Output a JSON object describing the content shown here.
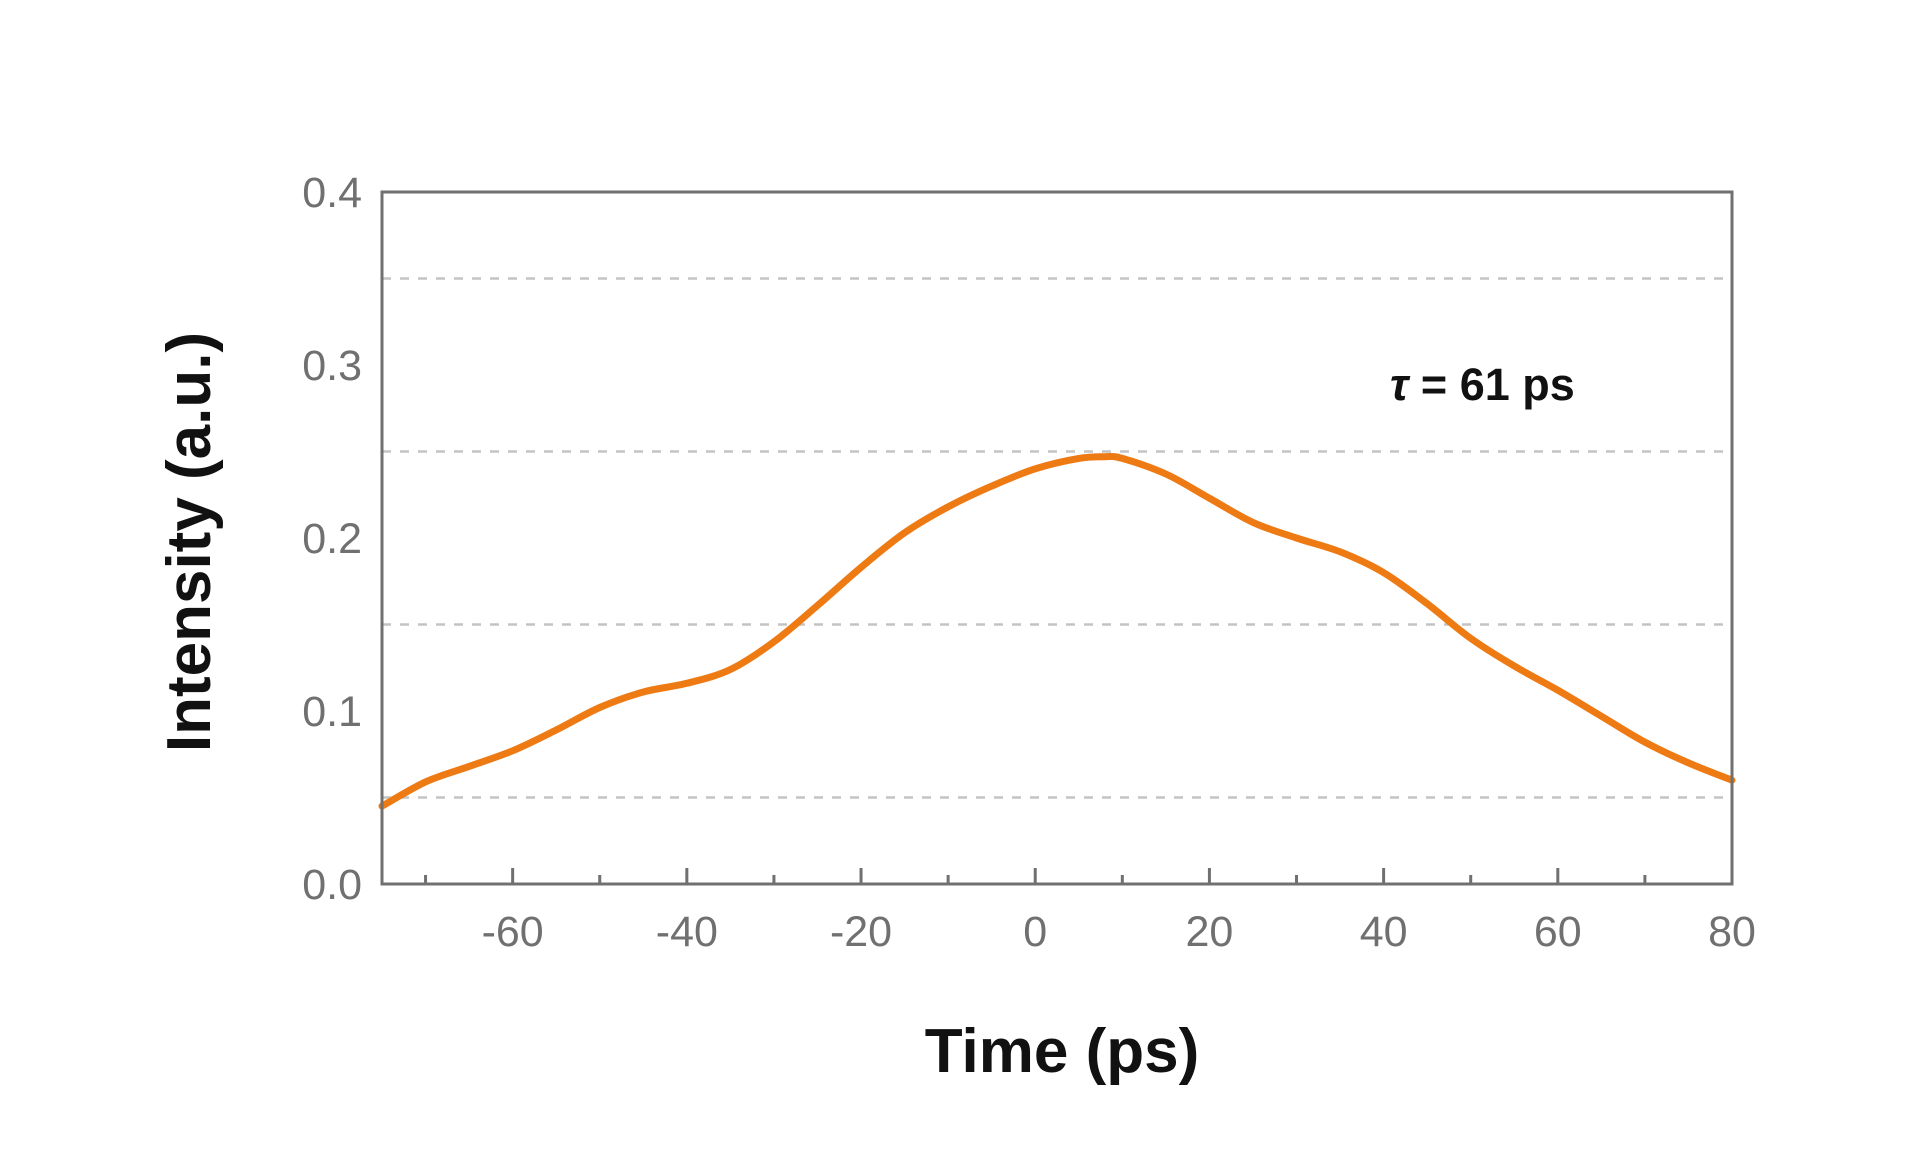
{
  "chart_data": {
    "type": "line",
    "title": "",
    "xlabel": "Time (ps)",
    "ylabel": "Intensity (a.u.)",
    "xlim": [
      -75,
      80
    ],
    "ylim": [
      0.0,
      0.4
    ],
    "x_ticks": [
      -60,
      -40,
      -20,
      0,
      20,
      40,
      60,
      80
    ],
    "x_tick_labels": [
      "-60",
      "-40",
      "-20",
      "0",
      "20",
      "40",
      "60",
      "80"
    ],
    "x_minor_ticks": [
      -70,
      -50,
      -30,
      -10,
      10,
      30,
      50,
      70
    ],
    "y_ticks": [
      0.0,
      0.1,
      0.2,
      0.3,
      0.4
    ],
    "y_tick_labels": [
      "0.0",
      "0.1",
      "0.2",
      "0.3",
      "0.4"
    ],
    "y_grid": [
      0.05,
      0.15,
      0.25,
      0.35
    ],
    "grid": "dashed horizontal",
    "legend": "none",
    "annotation": {
      "symbol": "τ",
      "text": " = 61 ps",
      "position": "top-right"
    },
    "series": [
      {
        "color": "#ee7a14",
        "x": [
          -75,
          -70,
          -65,
          -60,
          -55,
          -50,
          -45,
          -40,
          -35,
          -30,
          -25,
          -20,
          -15,
          -10,
          -5,
          0,
          5,
          8,
          10,
          15,
          20,
          25,
          30,
          35,
          40,
          45,
          50,
          55,
          60,
          65,
          70,
          75,
          80
        ],
        "y": [
          0.045,
          0.059,
          0.068,
          0.077,
          0.089,
          0.102,
          0.111,
          0.116,
          0.124,
          0.14,
          0.161,
          0.183,
          0.203,
          0.218,
          0.23,
          0.24,
          0.246,
          0.247,
          0.246,
          0.237,
          0.223,
          0.209,
          0.2,
          0.192,
          0.18,
          0.162,
          0.142,
          0.126,
          0.112,
          0.097,
          0.082,
          0.07,
          0.06
        ]
      }
    ]
  }
}
